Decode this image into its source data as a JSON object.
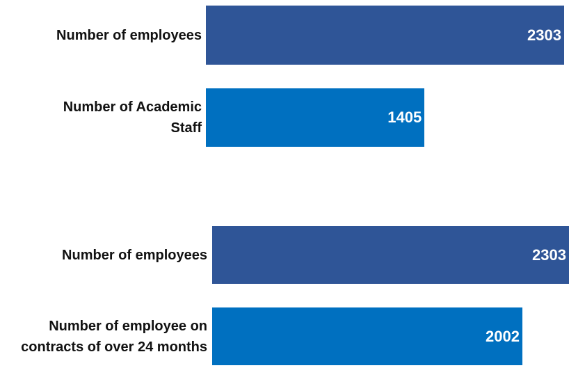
{
  "chart_data": [
    {
      "type": "bar",
      "orientation": "horizontal",
      "categories": [
        "Number of employees",
        "Number of Academic Staff"
      ],
      "values": [
        2303,
        1405
      ],
      "colors": [
        "#2f5597",
        "#0070c0"
      ],
      "xlim": [
        0,
        2303
      ]
    },
    {
      "type": "bar",
      "orientation": "horizontal",
      "categories": [
        "Number of employees",
        "Number of employee on contracts of over 24 months"
      ],
      "values": [
        2303,
        2002
      ],
      "colors": [
        "#2f5597",
        "#0070c0"
      ],
      "xlim": [
        0,
        2303
      ]
    }
  ]
}
